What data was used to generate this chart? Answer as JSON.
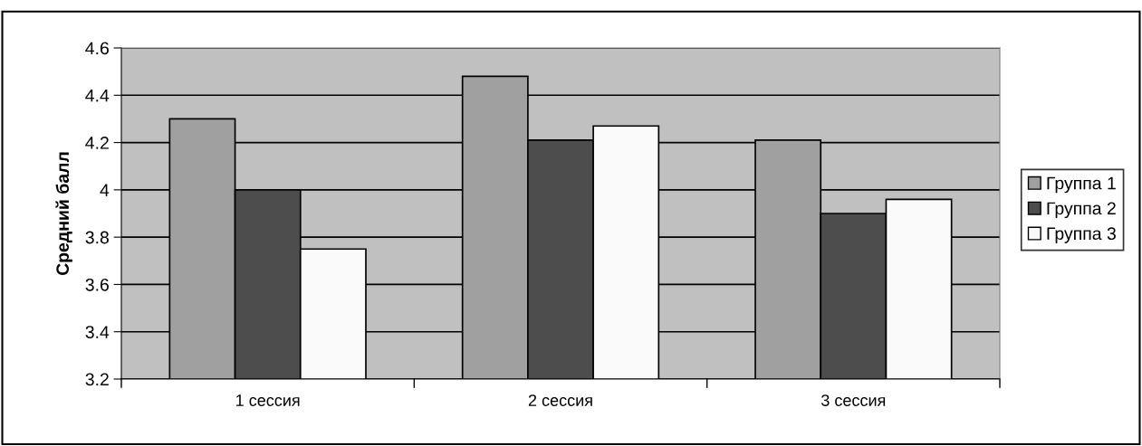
{
  "chart_data": {
    "type": "bar",
    "ylabel": "Средний балл",
    "categories": [
      "1 сессия",
      "2 сессия",
      "3 сессия"
    ],
    "series": [
      {
        "name": "Группа 1",
        "color": "#a0a0a0",
        "values": [
          4.3,
          4.48,
          4.21
        ]
      },
      {
        "name": "Группа 2",
        "color": "#4d4d4d",
        "values": [
          4.0,
          4.21,
          3.9
        ]
      },
      {
        "name": "Группа 3",
        "color": "#fafafa",
        "values": [
          3.75,
          4.27,
          3.96
        ]
      }
    ],
    "ylim": [
      3.2,
      4.6
    ],
    "yticks": [
      3.2,
      3.4,
      3.6,
      3.8,
      4,
      4.2,
      4.4,
      4.6
    ],
    "grid": "y",
    "legend": "right"
  }
}
